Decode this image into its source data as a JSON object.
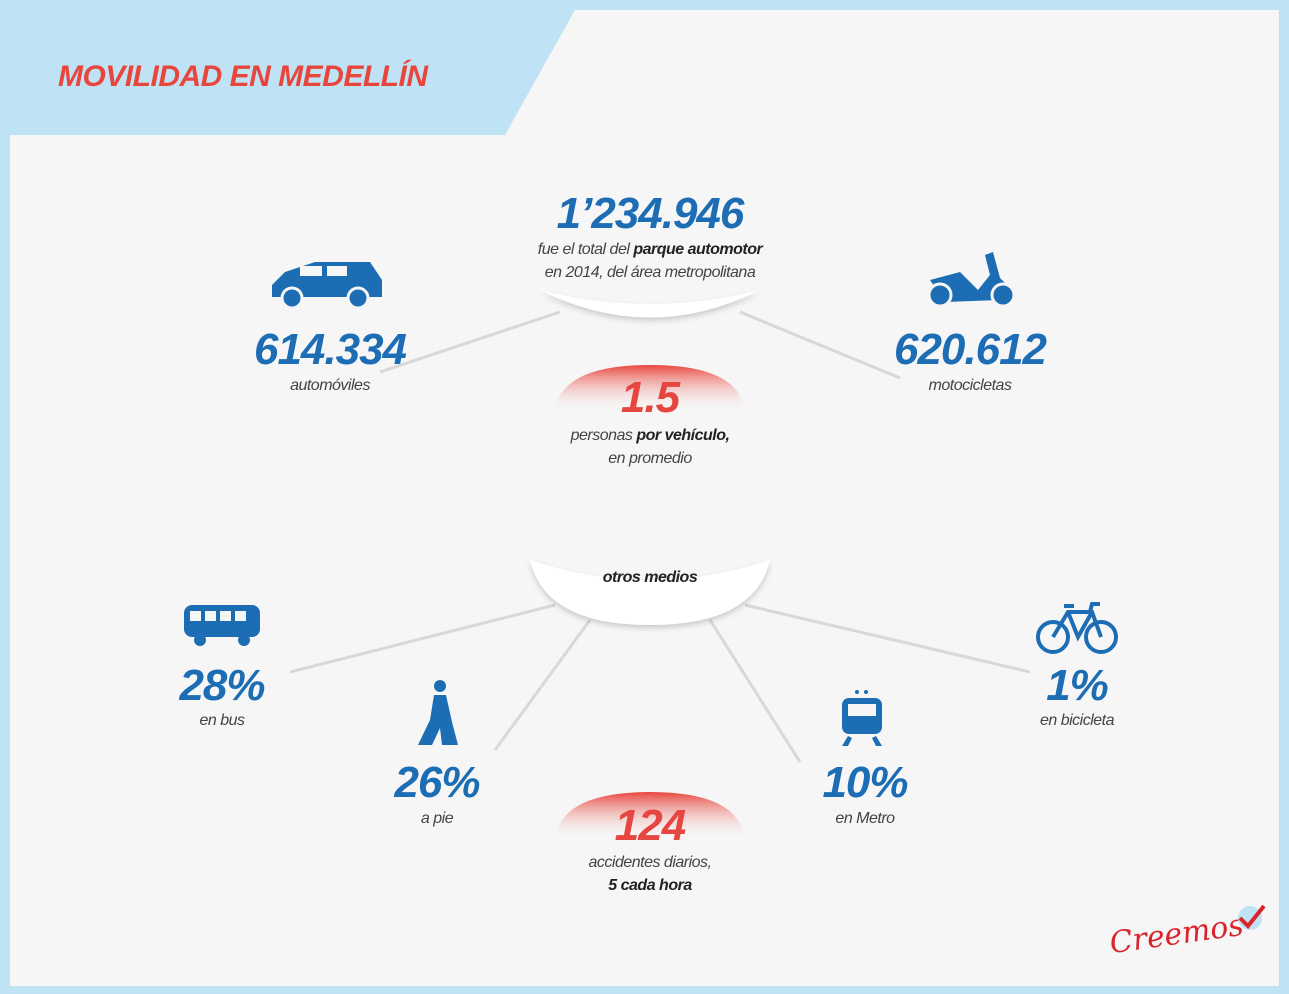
{
  "header": {
    "title": "MOVILIDAD EN MEDELLÍN"
  },
  "total": {
    "number": "1’234.946",
    "line1_a": "fue el total del ",
    "line1_b": "parque automotor",
    "line2": "en 2014, del área metropolitana"
  },
  "cars": {
    "number": "614.334",
    "label": "automóviles"
  },
  "motorcycles": {
    "number": "620.612",
    "label": "motocicletas"
  },
  "ratio": {
    "number": "1.5",
    "line1_a": "personas ",
    "line1_b": "por vehículo,",
    "line2": "en promedio"
  },
  "others": {
    "title": "otros medios",
    "modes": [
      {
        "value": "28%",
        "label": "en bus"
      },
      {
        "value": "26%",
        "label": "a pie"
      },
      {
        "value": "10%",
        "label": "en Metro"
      },
      {
        "value": "1%",
        "label": "en bicicleta"
      }
    ]
  },
  "accidents": {
    "number": "124",
    "line1": "accidentes diarios,",
    "line2": "5 cada hora"
  },
  "brand": "Creemos"
}
